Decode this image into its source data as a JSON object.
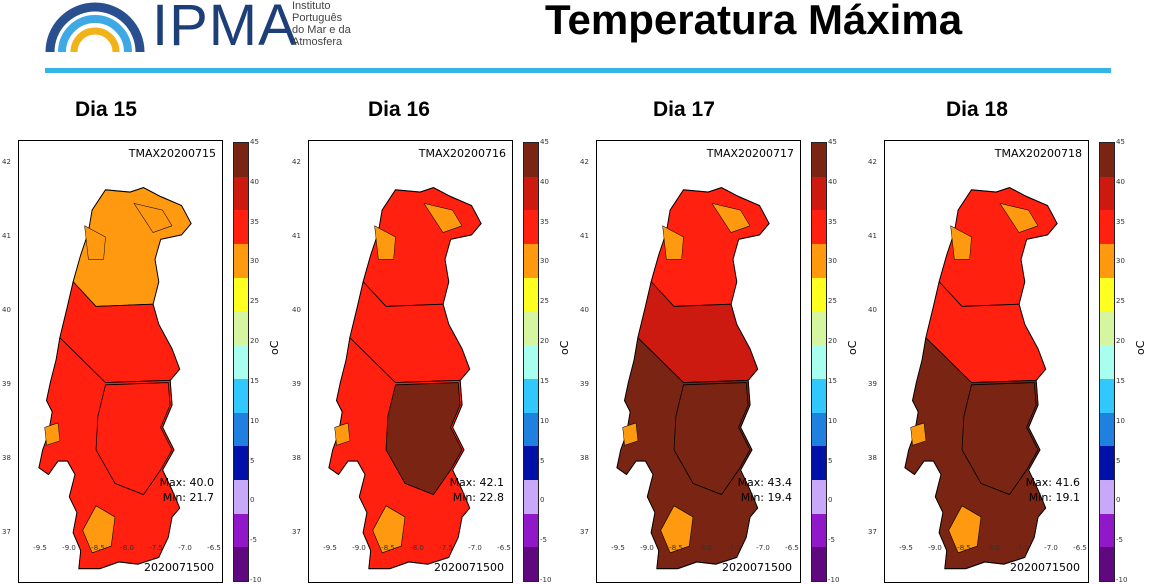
{
  "header": {
    "logo_text": "IPMA",
    "logo_sub": [
      "Instituto",
      "Português",
      "do Mar e da",
      "Atmosfera"
    ],
    "title": "Temperatura Máxima",
    "accent_color": "#35b4e8"
  },
  "map_axes": {
    "lat_ticks": [
      "42",
      "41",
      "40",
      "39",
      "38",
      "37"
    ],
    "lon_ticks": [
      "-9.5",
      "-9.0",
      "-8.5",
      "-8.0",
      "-7.5",
      "-7.0",
      "-6.5"
    ]
  },
  "colorbar": {
    "unit": "oC",
    "ticks": [
      "45",
      "40",
      "35",
      "30",
      "25",
      "20",
      "15",
      "10",
      "5",
      "0",
      "-5",
      "-10"
    ],
    "colors": [
      "#7a2514",
      "#cc1a10",
      "#ff2010",
      "#ff9a10",
      "#ffff20",
      "#d6f5a0",
      "#a8fff0",
      "#30c8ff",
      "#2080e0",
      "#0010a8",
      "#c8a8f8",
      "#9018c8",
      "#600880"
    ]
  },
  "panels": [
    {
      "day": "Dia 15",
      "code": "TMAX20200715",
      "max": "Max: 40.0",
      "min": "Min: 21.7",
      "run": "2020071500",
      "dominant": "orange"
    },
    {
      "day": "Dia 16",
      "code": "TMAX20200716",
      "max": "Max: 42.1",
      "min": "Min: 22.8",
      "run": "2020071500",
      "dominant": "brown"
    },
    {
      "day": "Dia 17",
      "code": "TMAX20200717",
      "max": "Max: 43.4",
      "min": "Min: 19.4",
      "run": "2020071500",
      "dominant": "brown"
    },
    {
      "day": "Dia 18",
      "code": "TMAX20200718",
      "max": "Max: 41.6",
      "min": "Min: 19.1",
      "run": "2020071500",
      "dominant": "brown"
    }
  ]
}
